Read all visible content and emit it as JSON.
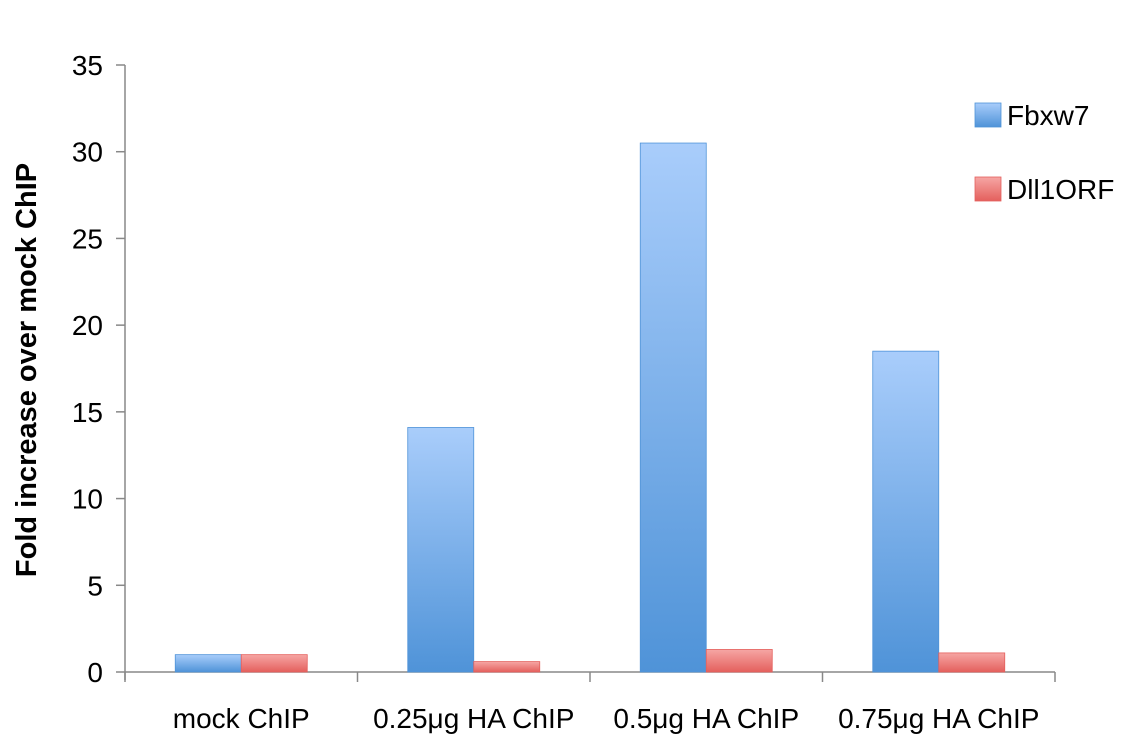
{
  "chart_data": {
    "type": "bar",
    "categories": [
      "mock ChIP",
      "0.25μg HA ChIP",
      "0.5μg HA ChIP",
      "0.75μg HA ChIP"
    ],
    "series": [
      {
        "name": "Fbxw7",
        "values": [
          1.0,
          14.1,
          30.5,
          18.5
        ],
        "color": "#4f93d8",
        "color_light": "#a9cdfb"
      },
      {
        "name": "Dll1ORF",
        "values": [
          1.0,
          0.6,
          1.3,
          1.1
        ],
        "color": "#e4605d",
        "color_light": "#f6a6a4"
      }
    ],
    "title": "",
    "xlabel": "",
    "ylabel": "Fold increase over mock ChIP",
    "ylim": [
      0,
      35
    ],
    "yticks": [
      0,
      5,
      10,
      15,
      20,
      25,
      30,
      35
    ],
    "grid": false,
    "legend_position": "top-right"
  }
}
